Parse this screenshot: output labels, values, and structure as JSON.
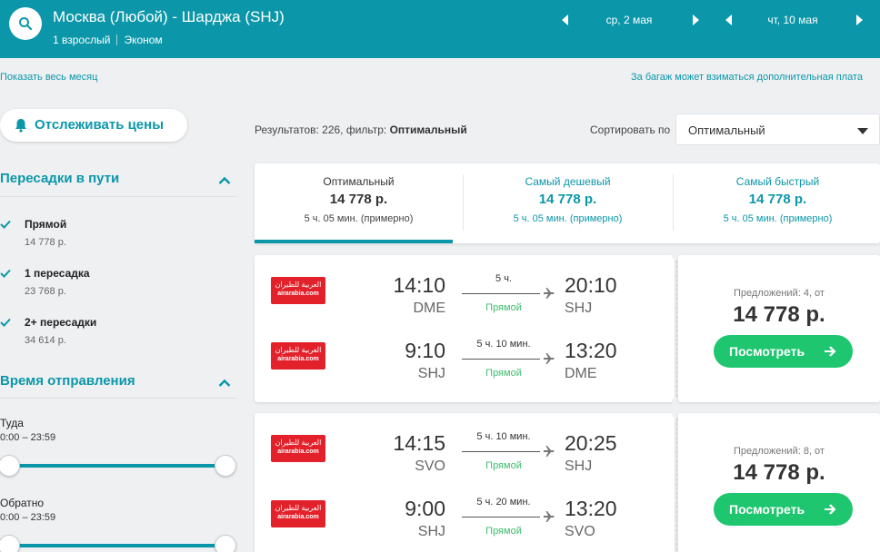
{
  "header": {
    "route": "Москва (Любой) - Шарджа (SHJ)",
    "passengers": "1 взрослый",
    "cabin": "Эконом",
    "depart_date": "ср, 2 мая",
    "return_date": "чт, 10 мая"
  },
  "top_links": {
    "show_month": "Показать весь месяц",
    "baggage_note": "За багаж может взиматься дополнительная плата"
  },
  "sidebar": {
    "track_prices": "Отслеживать цены",
    "stops_title": "Пересадки в пути",
    "stops": [
      {
        "label": "Прямой",
        "price": "14 778 р.",
        "checked": true
      },
      {
        "label": "1 пересадка",
        "price": "23 768 р.",
        "checked": true
      },
      {
        "label": "2+ пересадки",
        "price": "34 614 р.",
        "checked": true
      }
    ],
    "departure_title": "Время отправления",
    "outbound": {
      "label": "Туда",
      "range": "0:00 – 23:59"
    },
    "inbound": {
      "label": "Обратно",
      "range": "0:00 – 23:59"
    }
  },
  "results": {
    "count_label": "Результатов: 226, фильтр:",
    "filter_value": "Оптимальный",
    "sort_label": "Сортировать по",
    "sort_value": "Оптимальный"
  },
  "tabs": [
    {
      "title": "Оптимальный",
      "price": "14 778 р.",
      "duration": "5 ч. 05 мин. (примерно)",
      "active": true
    },
    {
      "title": "Самый дешевый",
      "price": "14 778 р.",
      "duration": "5 ч. 05 мин. (примерно)",
      "active": false
    },
    {
      "title": "Самый быстрый",
      "price": "14 778 р.",
      "duration": "5 ч. 05 мин. (примерно)",
      "active": false
    }
  ],
  "tickets": [
    {
      "offers": "Предложений: 4, от",
      "price": "14 778 р.",
      "button": "Посмотреть",
      "segments": [
        {
          "airline_ar": "العربية للطيران",
          "airline_en": "airarabia.com",
          "dep_time": "14:10",
          "dep_code": "DME",
          "duration": "5 ч.",
          "stops": "Прямой",
          "arr_time": "20:10",
          "arr_code": "SHJ"
        },
        {
          "airline_ar": "العربية للطيران",
          "airline_en": "airarabia.com",
          "dep_time": "9:10",
          "dep_code": "SHJ",
          "duration": "5 ч. 10 мин.",
          "stops": "Прямой",
          "arr_time": "13:20",
          "arr_code": "DME"
        }
      ]
    },
    {
      "offers": "Предложений: 8, от",
      "price": "14 778 р.",
      "button": "Посмотреть",
      "segments": [
        {
          "airline_ar": "العربية للطيران",
          "airline_en": "airarabia.com",
          "dep_time": "14:15",
          "dep_code": "SVO",
          "duration": "5 ч. 10 мин.",
          "stops": "Прямой",
          "arr_time": "20:25",
          "arr_code": "SHJ"
        },
        {
          "airline_ar": "العربية للطيران",
          "airline_en": "airarabia.com",
          "dep_time": "9:00",
          "dep_code": "SHJ",
          "duration": "5 ч. 20 мин.",
          "stops": "Прямой",
          "arr_time": "13:20",
          "arr_code": "SVO"
        }
      ]
    }
  ],
  "colors": {
    "brand": "#0b97a9",
    "cta": "#1ec66f",
    "direct": "#3dbd6e",
    "airline_logo": "#e2212b"
  }
}
